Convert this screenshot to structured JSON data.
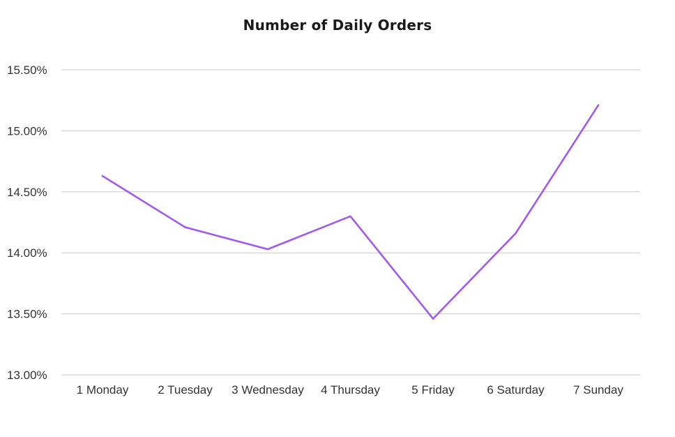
{
  "chart_data": {
    "type": "line",
    "title": "Number of Daily Orders",
    "xlabel": "",
    "ylabel": "",
    "categories": [
      "1 Monday",
      "2 Tuesday",
      "3 Wednesday",
      "4 Thursday",
      "5 Friday",
      "6 Saturday",
      "7 Sunday"
    ],
    "series": [
      {
        "values": [
          14.63,
          14.21,
          14.03,
          14.3,
          13.46,
          14.16,
          15.21
        ],
        "color": "#a259f0"
      }
    ],
    "ylim": [
      13.0,
      15.5
    ],
    "y_ticks": [
      13.0,
      13.5,
      14.0,
      14.5,
      15.0,
      15.5
    ],
    "y_tick_labels": [
      "13.00%",
      "13.50%",
      "14.00%",
      "14.50%",
      "15.00%",
      "15.50%"
    ],
    "grid": true,
    "legend": "none"
  }
}
